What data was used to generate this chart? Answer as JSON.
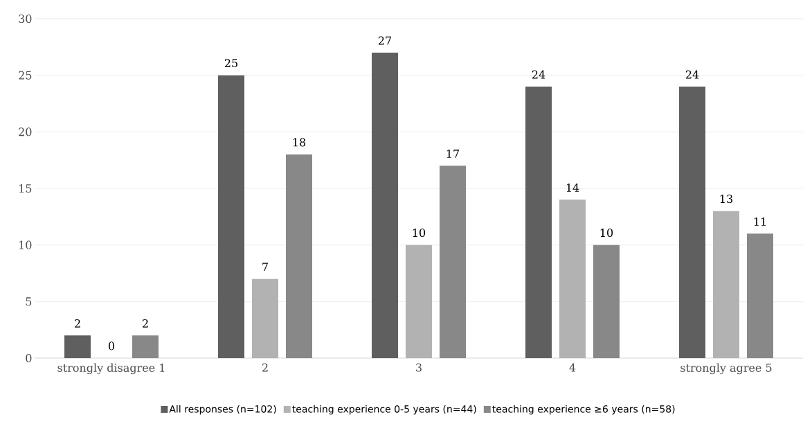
{
  "chart_data": {
    "type": "bar",
    "categories": [
      "strongly disagree 1",
      "2",
      "3",
      "4",
      "strongly agree 5"
    ],
    "series": [
      {
        "name": "All responses (n=102)",
        "color": "#5f5f5f",
        "values": [
          2,
          25,
          27,
          24,
          24
        ]
      },
      {
        "name": "teaching experience 0-5 years (n=44)",
        "color": "#b2b2b2",
        "values": [
          0,
          7,
          10,
          14,
          13
        ]
      },
      {
        "name": "teaching experience ≥6 years (n=58)",
        "color": "#888888",
        "values": [
          2,
          18,
          17,
          10,
          11
        ]
      }
    ],
    "ylim": [
      0,
      30
    ],
    "yticks": [
      0,
      5,
      10,
      15,
      20,
      25,
      30
    ],
    "grid": "y",
    "legend": "bottom",
    "data_labels": true
  }
}
